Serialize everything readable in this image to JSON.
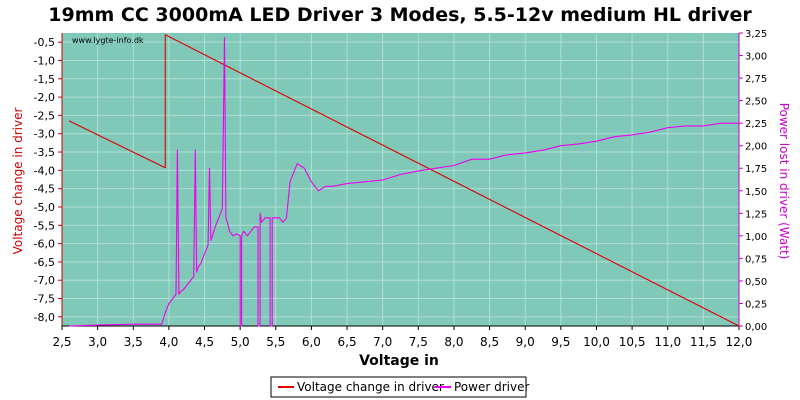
{
  "chart_data": {
    "type": "line",
    "title": "19mm CC 3000mA LED Driver 3 Modes, 5.5-12v medium HL driver",
    "xlabel": "Voltage in",
    "ylabel_left": "Voltage change in driver",
    "ylabel_right": "Power lost in driver (Watt)",
    "watermark": "www.lygte-info.dk",
    "xlim": [
      2.5,
      12.0
    ],
    "ylim_left": [
      -8.25,
      -0.25
    ],
    "ylim_right": [
      0,
      3.25
    ],
    "x_ticks": [
      "2,5",
      "3,0",
      "3,5",
      "4,0",
      "4,5",
      "5,0",
      "5,5",
      "6,0",
      "6,5",
      "7,0",
      "7,5",
      "8,0",
      "8,5",
      "9,0",
      "9,5",
      "10,0",
      "10,5",
      "11,0",
      "11,5",
      "12,0"
    ],
    "y_left_ticks": [
      "-0,5",
      "-1,0",
      "-1,5",
      "-2,0",
      "-2,5",
      "-3,0",
      "-3,5",
      "-4,0",
      "-4,5",
      "-5,0",
      "-5,5",
      "-6,0",
      "-6,5",
      "-7,0",
      "-7,5",
      "-8,0"
    ],
    "y_right_ticks": [
      "0,00",
      "0,25",
      "0,50",
      "0,75",
      "1,00",
      "1,25",
      "1,50",
      "1,75",
      "2,00",
      "2,25",
      "2,50",
      "2,75",
      "3,00",
      "3,25"
    ],
    "grid": true,
    "legend_position": "bottom-center",
    "colors": {
      "plot_bg": "#80c8b8",
      "grid": "#b0e0d4",
      "voltage_change": "#dd0000",
      "power": "#ee00ee",
      "left_axis": "#cc0000",
      "right_axis": "#cc00cc"
    },
    "series": [
      {
        "name": "Voltage change in driver",
        "axis": "left",
        "x": [
          2.6,
          3.95,
          3.95,
          12.0
        ],
        "y": [
          -2.65,
          -3.93,
          -0.3,
          -8.25
        ]
      },
      {
        "name": "Power driver",
        "axis": "right",
        "x": [
          2.6,
          3.0,
          3.5,
          3.9,
          3.95,
          4.0,
          4.1,
          4.12,
          4.14,
          4.16,
          4.2,
          4.3,
          4.35,
          4.37,
          4.39,
          4.41,
          4.45,
          4.5,
          4.55,
          4.57,
          4.59,
          4.61,
          4.65,
          4.7,
          4.75,
          4.78,
          4.8,
          4.82,
          4.85,
          4.9,
          4.95,
          5.0,
          5.0,
          5.02,
          5.02,
          5.05,
          5.1,
          5.15,
          5.2,
          5.25,
          5.25,
          5.28,
          5.28,
          5.3,
          5.35,
          5.4,
          5.42,
          5.42,
          5.45,
          5.45,
          5.5,
          5.55,
          5.6,
          5.65,
          5.7,
          5.8,
          5.9,
          6.0,
          6.1,
          6.2,
          6.3,
          6.5,
          6.75,
          7.0,
          7.25,
          7.5,
          7.75,
          8.0,
          8.25,
          8.5,
          8.75,
          9.0,
          9.25,
          9.5,
          9.75,
          10.0,
          10.25,
          10.5,
          10.75,
          11.0,
          11.25,
          11.5,
          11.75,
          12.0
        ],
        "y": [
          0.0,
          0.01,
          0.02,
          0.02,
          0.15,
          0.25,
          0.35,
          1.95,
          0.35,
          0.38,
          0.4,
          0.5,
          0.55,
          1.95,
          0.6,
          0.65,
          0.7,
          0.8,
          0.9,
          1.75,
          0.95,
          1.0,
          1.1,
          1.2,
          1.3,
          3.2,
          1.2,
          1.15,
          1.05,
          1.0,
          1.02,
          1.0,
          0.0,
          0.0,
          1.0,
          1.05,
          1.0,
          1.05,
          1.1,
          1.1,
          0.0,
          0.0,
          1.25,
          1.15,
          1.2,
          1.2,
          1.2,
          0.0,
          0.0,
          1.2,
          1.2,
          1.2,
          1.15,
          1.2,
          1.6,
          1.8,
          1.75,
          1.6,
          1.5,
          1.55,
          1.55,
          1.58,
          1.6,
          1.62,
          1.68,
          1.72,
          1.75,
          1.78,
          1.85,
          1.85,
          1.9,
          1.92,
          1.95,
          2.0,
          2.02,
          2.05,
          2.1,
          2.12,
          2.15,
          2.2,
          2.22,
          2.22,
          2.25,
          2.25
        ]
      }
    ]
  }
}
